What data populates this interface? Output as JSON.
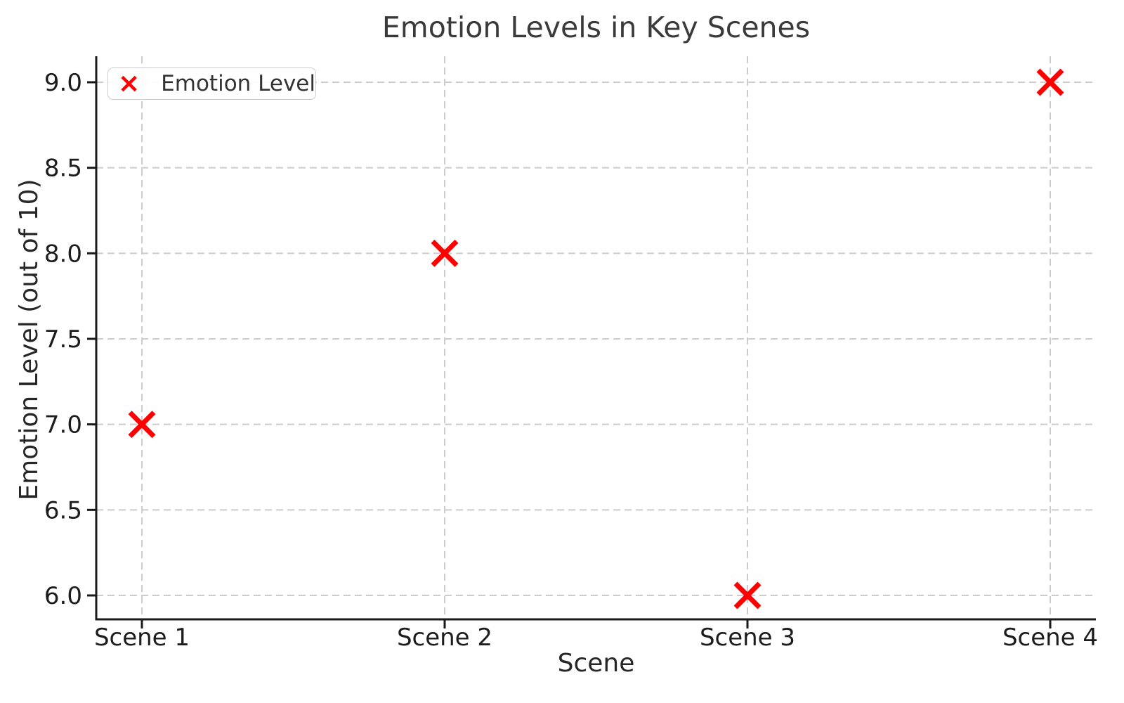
{
  "chart_data": {
    "type": "scatter",
    "title": "Emotion Levels in Key Scenes",
    "xlabel": "Scene",
    "ylabel": "Emotion Level (out of 10)",
    "categories": [
      "Scene 1",
      "Scene 2",
      "Scene 3",
      "Scene 4"
    ],
    "series": [
      {
        "name": "Emotion Level",
        "values": [
          7.0,
          8.0,
          6.0,
          9.0
        ],
        "marker": "x",
        "color": "#ff0000"
      }
    ],
    "yticks": [
      "6.0",
      "6.5",
      "7.0",
      "7.5",
      "8.0",
      "8.5",
      "9.0"
    ],
    "ylim": [
      5.86,
      9.15
    ],
    "grid": true,
    "grid_style": "dashed",
    "legend": {
      "label": "Emotion Level",
      "position": "upper left"
    }
  },
  "colors": {
    "marker": "#ff0000",
    "grid": "#cccccc",
    "spine": "#1a1a1a",
    "tick_text": "#1c1c1c",
    "label_text": "#262626",
    "title_text": "#3a3a3a",
    "legend_text": "#333333",
    "legend_border": "#cccccc",
    "background": "#ffffff"
  }
}
